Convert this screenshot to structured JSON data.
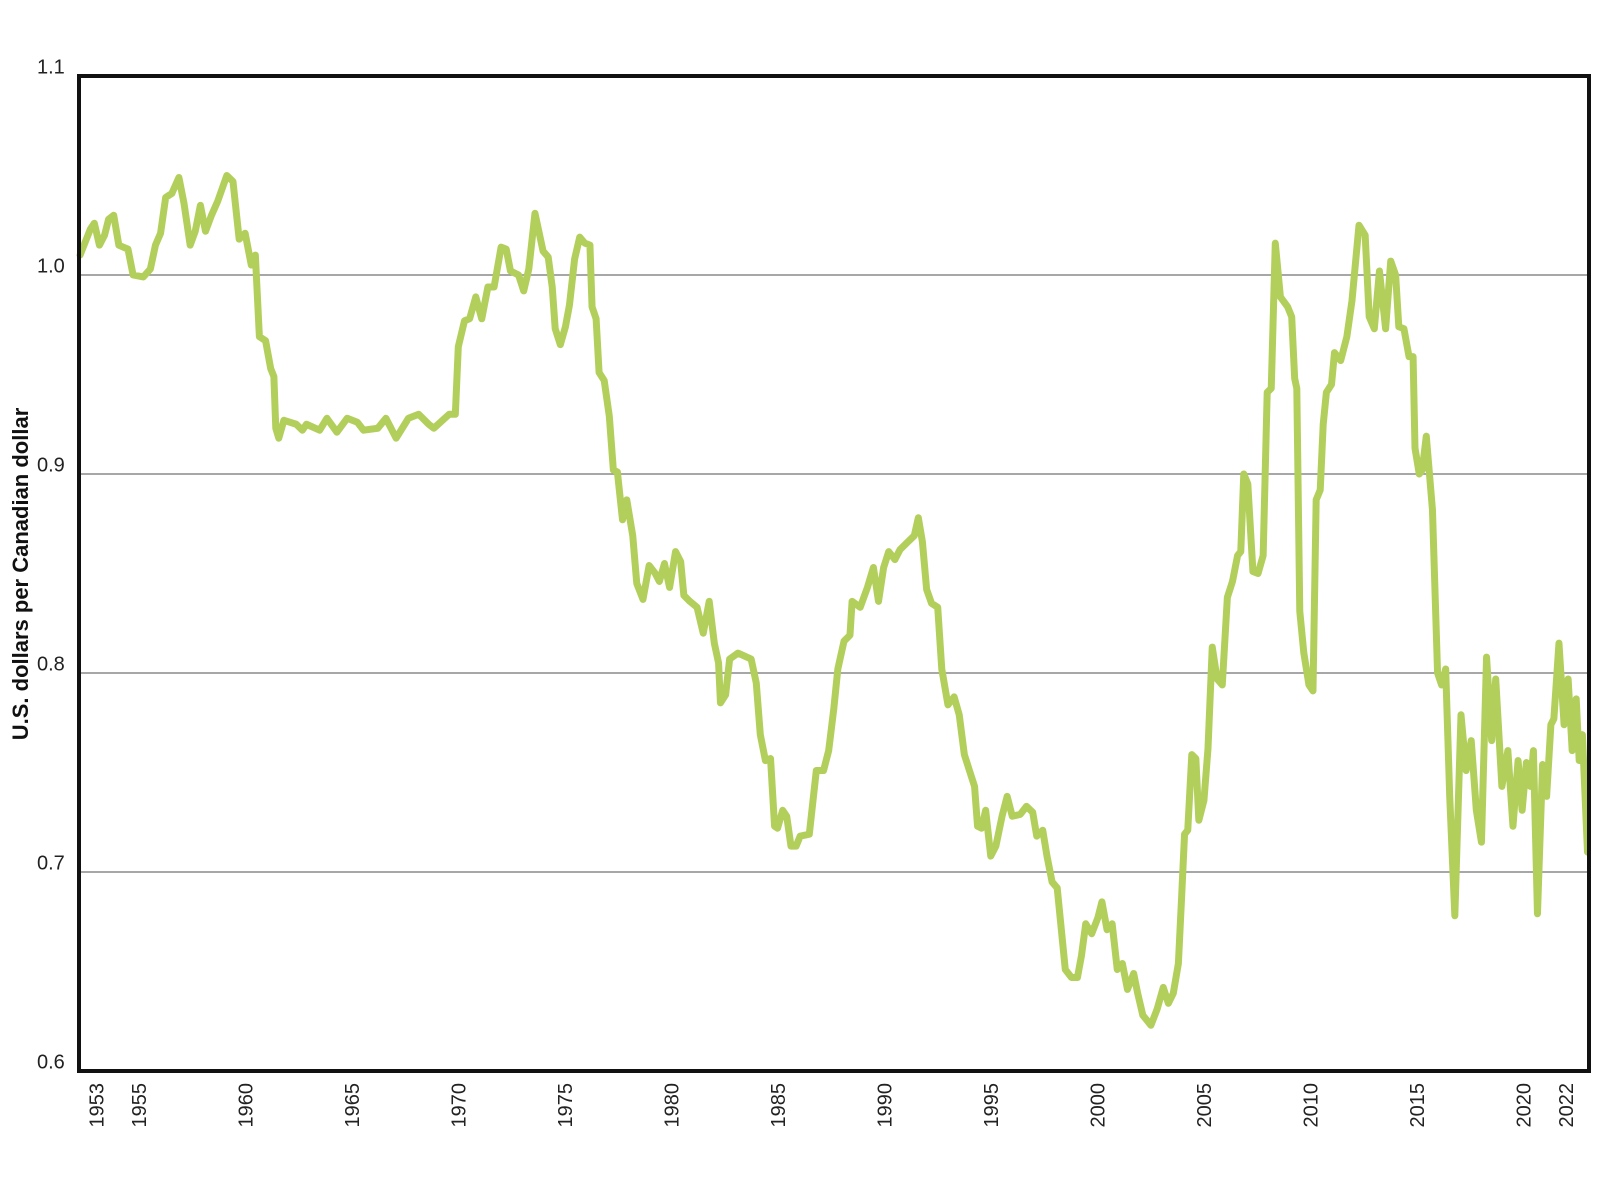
{
  "chart_data": {
    "type": "line",
    "y_label": "U.S. dollars per Canadian dollar",
    "color": "#b2cf5c",
    "grid": true,
    "xlim": [
      1952.1,
      2023
    ],
    "xticks": [
      1953,
      1955,
      1960,
      1965,
      1970,
      1975,
      1980,
      1985,
      1990,
      1995,
      2000,
      2005,
      2010,
      2015,
      2020,
      2022
    ],
    "ylim": [
      0.6,
      1.1
    ],
    "yticks": [
      0.6,
      0.7,
      0.8,
      0.9,
      {
        "value": 1,
        "label": "1.0"
      },
      1.1
    ],
    "x": [
      1952.15,
      1952.63,
      1952.82,
      1953.06,
      1953.3,
      1953.49,
      1953.73,
      1953.97,
      1954.4,
      1954.64,
      1955.12,
      1955.45,
      1955.69,
      1955.93,
      1956.17,
      1956.46,
      1956.79,
      1957.03,
      1957.32,
      1957.56,
      1957.8,
      1958.04,
      1958.32,
      1958.61,
      1959.04,
      1959.33,
      1959.62,
      1959.9,
      1960.19,
      1960.38,
      1960.57,
      1960.86,
      1961.1,
      1961.25,
      1961.34,
      1961.48,
      1961.72,
      1962.3,
      1962.59,
      1962.78,
      1963.4,
      1963.74,
      1964.21,
      1964.69,
      1965.17,
      1965.46,
      1966.13,
      1966.51,
      1966.99,
      1967.57,
      1968.05,
      1968.52,
      1968.76,
      1969.48,
      1969.77,
      1969.91,
      1970.2,
      1970.44,
      1970.73,
      1971.01,
      1971.3,
      1971.59,
      1971.92,
      1972.16,
      1972.36,
      1972.74,
      1972.98,
      1973.22,
      1973.51,
      1973.89,
      1974.13,
      1974.32,
      1974.46,
      1974.7,
      1974.94,
      1975.13,
      1975.37,
      1975.61,
      1975.85,
      1976.09,
      1976.19,
      1976.38,
      1976.52,
      1976.76,
      1977.0,
      1977.19,
      1977.38,
      1977.62,
      1977.82,
      1978.1,
      1978.29,
      1978.58,
      1978.87,
      1979.16,
      1979.35,
      1979.59,
      1979.83,
      1980.11,
      1980.35,
      1980.5,
      1980.78,
      1981.12,
      1981.41,
      1981.69,
      1981.93,
      1982.13,
      1982.22,
      1982.46,
      1982.65,
      1983.04,
      1983.66,
      1983.9,
      1984.09,
      1984.33,
      1984.57,
      1984.76,
      1984.9,
      1985.14,
      1985.33,
      1985.53,
      1985.77,
      1985.96,
      1986.39,
      1986.72,
      1987.06,
      1987.3,
      1987.54,
      1987.73,
      1988.02,
      1988.3,
      1988.4,
      1988.78,
      1989.12,
      1989.4,
      1989.64,
      1989.88,
      1990.12,
      1990.41,
      1990.65,
      1991.03,
      1991.32,
      1991.51,
      1991.7,
      1991.9,
      1992.13,
      1992.42,
      1992.61,
      1992.9,
      1993.19,
      1993.43,
      1993.67,
      1993.91,
      1994.15,
      1994.29,
      1994.48,
      1994.67,
      1994.91,
      1995.15,
      1995.44,
      1995.68,
      1995.92,
      1996.3,
      1996.59,
      1996.88,
      1997.07,
      1997.35,
      1997.55,
      1997.79,
      1998.03,
      1998.41,
      1998.7,
      1998.98,
      1999.17,
      1999.37,
      1999.65,
      1999.94,
      2000.13,
      2000.37,
      2000.61,
      2000.85,
      2001.09,
      2001.33,
      2001.62,
      2001.81,
      2002.05,
      2002.43,
      2002.72,
      2003.01,
      2003.25,
      2003.48,
      2003.72,
      2003.87,
      2004.01,
      2004.16,
      2004.35,
      2004.54,
      2004.68,
      2004.92,
      2005.11,
      2005.31,
      2005.54,
      2005.78,
      2006.02,
      2006.26,
      2006.5,
      2006.65,
      2006.79,
      2006.98,
      2007.22,
      2007.46,
      2007.7,
      2007.89,
      2008.08,
      2008.27,
      2008.51,
      2008.85,
      2009.04,
      2009.18,
      2009.28,
      2009.42,
      2009.61,
      2009.85,
      2010.04,
      2010.19,
      2010.38,
      2010.52,
      2010.67,
      2010.91,
      2011.05,
      2011.34,
      2011.63,
      2011.87,
      2012.2,
      2012.49,
      2012.68,
      2012.92,
      2013.16,
      2013.45,
      2013.69,
      2013.92,
      2014.07,
      2014.31,
      2014.55,
      2014.74,
      2014.83,
      2015.03,
      2015.17,
      2015.36,
      2015.65,
      2015.89,
      2016.08,
      2016.27,
      2016.46,
      2016.7,
      2016.99,
      2017.23,
      2017.47,
      2017.71,
      2017.95,
      2018.19,
      2018.43,
      2018.62,
      2018.91,
      2019.19,
      2019.43,
      2019.67,
      2019.86,
      2020.06,
      2020.25,
      2020.39,
      2020.58,
      2020.82,
      2021.01,
      2021.21,
      2021.35,
      2021.59,
      2021.83,
      2022.02,
      2022.21,
      2022.4,
      2022.54,
      2022.69,
      2022.93
    ],
    "values": [
      1.01,
      1.023,
      1.026,
      1.015,
      1.02,
      1.028,
      1.03,
      1.015,
      1.013,
      1.0,
      0.999,
      1.003,
      1.015,
      1.021,
      1.039,
      1.041,
      1.049,
      1.036,
      1.015,
      1.022,
      1.035,
      1.022,
      1.03,
      1.037,
      1.05,
      1.047,
      1.018,
      1.021,
      1.005,
      1.01,
      0.969,
      0.967,
      0.953,
      0.949,
      0.923,
      0.918,
      0.927,
      0.925,
      0.922,
      0.925,
      0.922,
      0.928,
      0.921,
      0.928,
      0.926,
      0.922,
      0.923,
      0.928,
      0.918,
      0.928,
      0.93,
      0.925,
      0.923,
      0.93,
      0.93,
      0.964,
      0.977,
      0.978,
      0.989,
      0.978,
      0.994,
      0.994,
      1.014,
      1.013,
      1.002,
      1.0,
      0.992,
      1.003,
      1.031,
      1.012,
      1.009,
      0.994,
      0.973,
      0.965,
      0.974,
      0.985,
      1.008,
      1.019,
      1.016,
      1.015,
      0.984,
      0.978,
      0.951,
      0.947,
      0.929,
      0.902,
      0.901,
      0.877,
      0.887,
      0.869,
      0.845,
      0.837,
      0.854,
      0.85,
      0.846,
      0.855,
      0.843,
      0.861,
      0.856,
      0.839,
      0.836,
      0.833,
      0.82,
      0.836,
      0.815,
      0.805,
      0.785,
      0.789,
      0.807,
      0.81,
      0.807,
      0.795,
      0.769,
      0.756,
      0.757,
      0.723,
      0.722,
      0.731,
      0.728,
      0.713,
      0.713,
      0.718,
      0.719,
      0.751,
      0.751,
      0.761,
      0.782,
      0.802,
      0.816,
      0.819,
      0.836,
      0.833,
      0.843,
      0.853,
      0.836,
      0.853,
      0.861,
      0.857,
      0.862,
      0.866,
      0.869,
      0.878,
      0.866,
      0.842,
      0.835,
      0.833,
      0.802,
      0.784,
      0.788,
      0.779,
      0.759,
      0.751,
      0.743,
      0.723,
      0.722,
      0.731,
      0.708,
      0.713,
      0.728,
      0.738,
      0.728,
      0.729,
      0.733,
      0.73,
      0.718,
      0.721,
      0.708,
      0.695,
      0.692,
      0.651,
      0.647,
      0.647,
      0.658,
      0.674,
      0.669,
      0.677,
      0.685,
      0.671,
      0.674,
      0.651,
      0.654,
      0.641,
      0.649,
      0.639,
      0.628,
      0.623,
      0.631,
      0.642,
      0.634,
      0.639,
      0.654,
      0.687,
      0.719,
      0.721,
      0.759,
      0.757,
      0.726,
      0.736,
      0.762,
      0.813,
      0.797,
      0.794,
      0.838,
      0.846,
      0.859,
      0.861,
      0.9,
      0.895,
      0.851,
      0.85,
      0.859,
      0.941,
      0.943,
      1.016,
      0.989,
      0.984,
      0.979,
      0.948,
      0.943,
      0.831,
      0.81,
      0.794,
      0.791,
      0.887,
      0.892,
      0.925,
      0.941,
      0.945,
      0.961,
      0.957,
      0.969,
      0.987,
      1.025,
      1.02,
      0.979,
      0.973,
      1.002,
      0.973,
      1.007,
      1.0,
      0.974,
      0.973,
      0.959,
      0.959,
      0.913,
      0.9,
      0.902,
      0.919,
      0.882,
      0.8,
      0.794,
      0.802,
      0.738,
      0.678,
      0.779,
      0.751,
      0.766,
      0.731,
      0.715,
      0.808,
      0.766,
      0.797,
      0.743,
      0.761,
      0.723,
      0.756,
      0.731,
      0.755,
      0.743,
      0.761,
      0.679,
      0.754,
      0.738,
      0.774,
      0.777,
      0.815,
      0.774,
      0.797,
      0.761,
      0.787,
      0.756,
      0.769,
      0.71
    ]
  }
}
